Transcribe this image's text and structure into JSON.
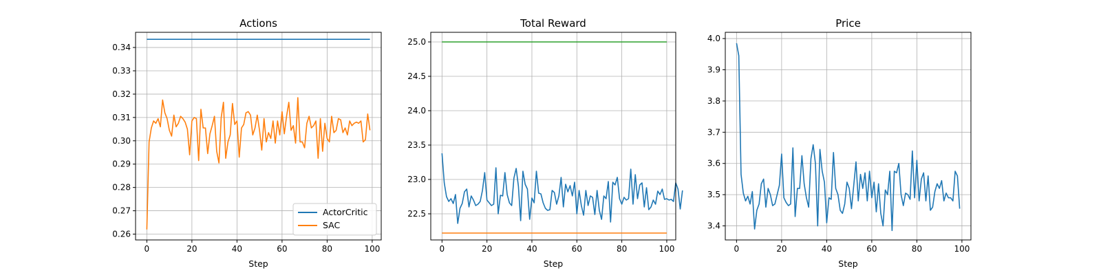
{
  "figure": {
    "background": "#ffffff",
    "grid_color": "#b0b0b0"
  },
  "chart_data": [
    {
      "type": "line",
      "title": "Actions",
      "xlabel": "Step",
      "ylabel": "",
      "xlim": [
        -5,
        104
      ],
      "ylim": [
        0.2575,
        0.3465
      ],
      "xticks": [
        0,
        20,
        40,
        60,
        80,
        100
      ],
      "yticks": [
        0.26,
        0.27,
        0.28,
        0.29,
        0.3,
        0.31,
        0.32,
        0.33,
        0.34
      ],
      "ytick_decimals": 2,
      "grid": true,
      "legend": "lower-right",
      "series": [
        {
          "name": "ActorCritic",
          "color": "#1f77b4",
          "constant": 0.3435,
          "x_start": 0,
          "x_end": 99
        },
        {
          "name": "SAC",
          "color": "#ff7f0e",
          "values": [
            0.262,
            0.2995,
            0.3055,
            0.3085,
            0.3075,
            0.3095,
            0.306,
            0.3175,
            0.312,
            0.3095,
            0.3045,
            0.302,
            0.311,
            0.306,
            0.3075,
            0.3105,
            0.3095,
            0.308,
            0.305,
            0.294,
            0.3085,
            0.31,
            0.3095,
            0.2915,
            0.3135,
            0.3055,
            0.3055,
            0.2945,
            0.303,
            0.3065,
            0.3105,
            0.2955,
            0.2905,
            0.31,
            0.3165,
            0.2925,
            0.2995,
            0.3025,
            0.316,
            0.307,
            0.3085,
            0.293,
            0.3055,
            0.307,
            0.312,
            0.3125,
            0.311,
            0.3025,
            0.3055,
            0.311,
            0.3045,
            0.296,
            0.3095,
            0.2995,
            0.3035,
            0.301,
            0.3085,
            0.299,
            0.3085,
            0.3025,
            0.3125,
            0.303,
            0.3105,
            0.3165,
            0.3045,
            0.3065,
            0.299,
            0.3185,
            0.2995,
            0.2995,
            0.297,
            0.3075,
            0.3105,
            0.3055,
            0.3065,
            0.3085,
            0.2925,
            0.3095,
            0.2955,
            0.3075,
            0.301,
            0.2995,
            0.3105,
            0.3035,
            0.3045,
            0.3095,
            0.309,
            0.3035,
            0.3055,
            0.3025,
            0.3085,
            0.3065,
            0.3075,
            0.308,
            0.3075,
            0.3085,
            0.2995,
            0.3005,
            0.3115,
            0.3045
          ]
        }
      ]
    },
    {
      "type": "line",
      "title": "Total Reward",
      "xlabel": "Step",
      "ylabel": "",
      "xlim": [
        -5,
        104
      ],
      "ylim": [
        22.12,
        25.14
      ],
      "xticks": [
        0,
        20,
        40,
        60,
        80,
        100
      ],
      "yticks": [
        22.5,
        23.0,
        23.5,
        24.0,
        24.5,
        25.0
      ],
      "ytick_decimals": 1,
      "grid": true,
      "series": [
        {
          "color": "#2ca02c",
          "constant": 25.0,
          "x_start": 0,
          "x_end": 100
        },
        {
          "color": "#ff7f0e",
          "constant": 22.22,
          "x_start": 0,
          "x_end": 100
        },
        {
          "color": "#1f77b4",
          "values": [
            23.38,
            22.95,
            22.75,
            22.68,
            22.72,
            22.65,
            22.78,
            22.36,
            22.58,
            22.65,
            22.82,
            22.86,
            22.6,
            22.76,
            22.7,
            22.62,
            22.64,
            22.68,
            22.84,
            23.1,
            22.7,
            22.66,
            22.62,
            22.64,
            23.17,
            22.5,
            22.77,
            22.76,
            23.1,
            22.78,
            22.66,
            22.62,
            23.02,
            23.16,
            22.9,
            22.4,
            23.12,
            22.93,
            22.86,
            22.42,
            22.73,
            22.66,
            23.12,
            22.8,
            22.79,
            22.66,
            22.58,
            22.55,
            22.56,
            22.84,
            22.81,
            22.64,
            22.76,
            23.03,
            22.6,
            22.93,
            22.82,
            22.91,
            22.76,
            22.96,
            22.5,
            22.84,
            22.62,
            22.48,
            22.84,
            22.62,
            22.76,
            22.74,
            22.49,
            22.84,
            22.55,
            22.42,
            22.76,
            22.72,
            22.97,
            22.38,
            22.96,
            22.92,
            23.03,
            22.72,
            22.64,
            22.74,
            22.7,
            22.72,
            23.15,
            22.64,
            23.07,
            22.72,
            22.92,
            22.95,
            22.6,
            22.88,
            22.56,
            22.6,
            22.7,
            22.64,
            22.83,
            22.78,
            22.86,
            22.71,
            22.72,
            22.7,
            22.71,
            22.68,
            22.95,
            22.86,
            22.57,
            22.84
          ]
        }
      ]
    },
    {
      "type": "line",
      "title": "Price",
      "xlabel": "Step",
      "ylabel": "",
      "xlim": [
        -5,
        104
      ],
      "ylim": [
        3.355,
        4.02
      ],
      "xticks": [
        0,
        20,
        40,
        60,
        80,
        100
      ],
      "yticks": [
        3.4,
        3.5,
        3.6,
        3.7,
        3.8,
        3.9,
        4.0
      ],
      "ytick_decimals": 1,
      "grid": true,
      "series": [
        {
          "color": "#1f77b4",
          "values": [
            3.985,
            3.945,
            3.565,
            3.505,
            3.48,
            3.495,
            3.47,
            3.51,
            3.39,
            3.45,
            3.47,
            3.535,
            3.55,
            3.46,
            3.52,
            3.5,
            3.465,
            3.47,
            3.5,
            3.53,
            3.63,
            3.49,
            3.475,
            3.465,
            3.47,
            3.65,
            3.43,
            3.52,
            3.52,
            3.625,
            3.535,
            3.49,
            3.46,
            3.615,
            3.66,
            3.6,
            3.4,
            3.645,
            3.575,
            3.54,
            3.41,
            3.49,
            3.485,
            3.635,
            3.52,
            3.5,
            3.45,
            3.44,
            3.47,
            3.54,
            3.52,
            3.455,
            3.53,
            3.605,
            3.48,
            3.565,
            3.52,
            3.57,
            3.48,
            3.575,
            3.49,
            3.54,
            3.445,
            3.535,
            3.44,
            3.4,
            3.515,
            3.5,
            3.575,
            3.385,
            3.575,
            3.57,
            3.6,
            3.5,
            3.465,
            3.505,
            3.5,
            3.485,
            3.64,
            3.49,
            3.61,
            3.48,
            3.55,
            3.57,
            3.48,
            3.56,
            3.45,
            3.46,
            3.51,
            3.535,
            3.52,
            3.545,
            3.48,
            3.505,
            3.49,
            3.49,
            3.48,
            3.575,
            3.56,
            3.455
          ]
        }
      ]
    }
  ]
}
